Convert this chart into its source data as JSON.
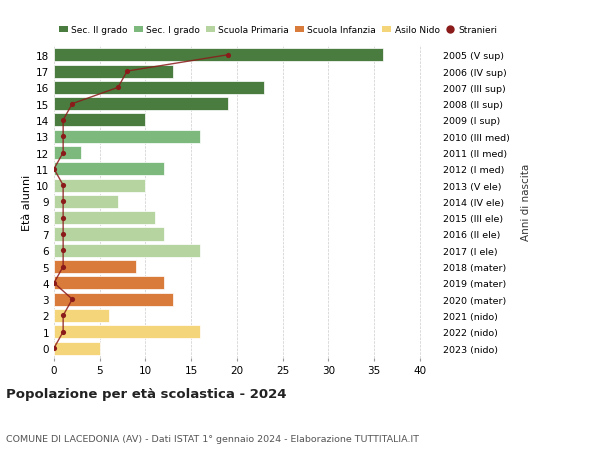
{
  "ages": [
    18,
    17,
    16,
    15,
    14,
    13,
    12,
    11,
    10,
    9,
    8,
    7,
    6,
    5,
    4,
    3,
    2,
    1,
    0
  ],
  "right_labels": [
    "2005 (V sup)",
    "2006 (IV sup)",
    "2007 (III sup)",
    "2008 (II sup)",
    "2009 (I sup)",
    "2010 (III med)",
    "2011 (II med)",
    "2012 (I med)",
    "2013 (V ele)",
    "2014 (IV ele)",
    "2015 (III ele)",
    "2016 (II ele)",
    "2017 (I ele)",
    "2018 (mater)",
    "2019 (mater)",
    "2020 (mater)",
    "2021 (nido)",
    "2022 (nido)",
    "2023 (nido)"
  ],
  "bar_values": [
    36,
    13,
    23,
    19,
    10,
    16,
    3,
    12,
    10,
    7,
    11,
    12,
    16,
    9,
    12,
    13,
    6,
    16,
    5
  ],
  "bar_colors": [
    "#4a7c3f",
    "#4a7c3f",
    "#4a7c3f",
    "#4a7c3f",
    "#4a7c3f",
    "#7db87d",
    "#7db87d",
    "#7db87d",
    "#b5d4a0",
    "#b5d4a0",
    "#b5d4a0",
    "#b5d4a0",
    "#b5d4a0",
    "#d97b3a",
    "#d97b3a",
    "#d97b3a",
    "#f5d57a",
    "#f5d57a",
    "#f5d57a"
  ],
  "stranieri_values": [
    19,
    8,
    7,
    2,
    1,
    1,
    1,
    0,
    1,
    1,
    1,
    1,
    1,
    1,
    0,
    2,
    1,
    1,
    0
  ],
  "stranieri_color": "#8b1a1a",
  "legend_labels": [
    "Sec. II grado",
    "Sec. I grado",
    "Scuola Primaria",
    "Scuola Infanzia",
    "Asilo Nido",
    "Stranieri"
  ],
  "legend_colors": [
    "#4a7c3f",
    "#7db87d",
    "#b5d4a0",
    "#d97b3a",
    "#f5d57a",
    "#8b1a1a"
  ],
  "ylabel": "Età alunni",
  "right_axis_label": "Anni di nascita",
  "title": "Popolazione per età scolastica - 2024",
  "subtitle": "COMUNE DI LACEDONIA (AV) - Dati ISTAT 1° gennaio 2024 - Elaborazione TUTTITALIA.IT",
  "xlim": [
    0,
    42
  ],
  "xticks": [
    0,
    5,
    10,
    15,
    20,
    25,
    30,
    35,
    40
  ],
  "background_color": "#ffffff",
  "grid_color": "#cccccc"
}
